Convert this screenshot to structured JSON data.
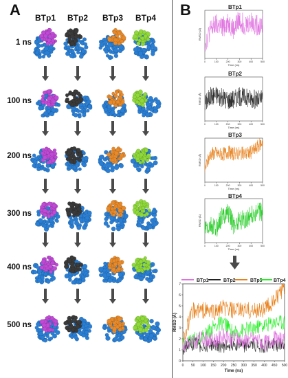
{
  "panel_a": {
    "letter": "A",
    "columns": [
      "BTp1",
      "BTp2",
      "BTp3",
      "BTp4"
    ],
    "times": [
      "1 ns",
      "100 ns",
      "200 ns",
      "300 ns",
      "400 ns",
      "500 ns"
    ],
    "colors": {
      "protein": "#2a7fd4",
      "BTp1": "#c04ad6",
      "BTp2": "#3a3a3a",
      "BTp3": "#e88a2a",
      "BTp4": "#8fd93a"
    }
  },
  "panel_b": {
    "letter": "B",
    "small_plots": [
      {
        "title": "BTp1",
        "ylabel": "RMSD (Å)",
        "xlabel": "Time (ns)",
        "color": "#e070e0"
      },
      {
        "title": "BTp2",
        "ylabel": "RMSD (Å)",
        "xlabel": "Time (ns)",
        "color": "#222222"
      },
      {
        "title": "BTp3",
        "ylabel": "RMSD (Å)",
        "xlabel": "Time (ns)",
        "color": "#e8801a"
      },
      {
        "title": "BTp4",
        "ylabel": "RMSD (Å)",
        "xlabel": "Time (ns)",
        "color": "#22cc22"
      }
    ],
    "combined": {
      "legend": [
        "BTp1",
        "BTp2",
        "BTp3",
        "BTp4"
      ],
      "ylabel": "RMSD (Å)",
      "xlabel": "Time (ns)"
    }
  },
  "chart_data": [
    {
      "type": "line",
      "title": "BTp1",
      "xlabel": "Time (ns)",
      "ylabel": "RMSD (Å)",
      "xlim": [
        0,
        500
      ],
      "ylim": [
        0,
        5
      ],
      "series": [
        {
          "name": "BTp1",
          "color": "#e070e0",
          "x": [
            0,
            50,
            100,
            150,
            200,
            250,
            300,
            350,
            400,
            450,
            500
          ],
          "values": [
            1.5,
            3.0,
            3.5,
            3.2,
            3.8,
            3.0,
            4.0,
            3.5,
            3.8,
            3.4,
            3.6
          ]
        }
      ]
    },
    {
      "type": "line",
      "title": "BTp2",
      "xlabel": "Time (ns)",
      "ylabel": "RMSD (Å)",
      "xlim": [
        0,
        500
      ],
      "ylim": [
        0,
        5
      ],
      "series": [
        {
          "name": "BTp2",
          "color": "#222222",
          "x": [
            0,
            50,
            100,
            150,
            200,
            250,
            300,
            350,
            400,
            450,
            500
          ],
          "values": [
            2.0,
            2.8,
            3.0,
            2.6,
            2.4,
            2.5,
            2.8,
            2.7,
            2.6,
            2.4,
            2.5
          ]
        }
      ]
    },
    {
      "type": "line",
      "title": "BTp3",
      "xlabel": "Time (ns)",
      "ylabel": "RMSD (Å)",
      "xlim": [
        0,
        500
      ],
      "ylim": [
        0,
        7
      ],
      "series": [
        {
          "name": "BTp3",
          "color": "#e8801a",
          "x": [
            0,
            50,
            100,
            150,
            200,
            250,
            300,
            350,
            400,
            450,
            500
          ],
          "values": [
            2.0,
            4.5,
            4.6,
            4.4,
            4.8,
            4.5,
            4.6,
            4.5,
            4.7,
            5.5,
            6.5
          ]
        }
      ]
    },
    {
      "type": "line",
      "title": "BTp4",
      "xlabel": "Time (ns)",
      "ylabel": "RMSD (Å)",
      "xlim": [
        0,
        500
      ],
      "ylim": [
        0,
        5
      ],
      "series": [
        {
          "name": "BTp4",
          "color": "#22cc22",
          "x": [
            0,
            50,
            100,
            150,
            200,
            250,
            300,
            350,
            400,
            450,
            500
          ],
          "values": [
            1.5,
            1.8,
            1.6,
            3.0,
            3.5,
            2.0,
            2.5,
            2.6,
            3.2,
            3.4,
            3.5
          ]
        }
      ]
    },
    {
      "type": "line",
      "xlabel": "Time (ns)",
      "ylabel": "RMSD (Å)",
      "xlim": [
        0,
        500
      ],
      "ylim": [
        0,
        7
      ],
      "x": [
        0,
        50,
        100,
        150,
        200,
        250,
        300,
        350,
        400,
        450,
        500
      ],
      "series": [
        {
          "name": "BTp1",
          "color": "#e070e0",
          "values": [
            1.5,
            1.8,
            2.0,
            1.8,
            2.2,
            2.0,
            1.8,
            2.0,
            1.6,
            2.0,
            1.8
          ]
        },
        {
          "name": "BTp2",
          "color": "#222222",
          "values": [
            1.2,
            1.5,
            1.4,
            1.5,
            1.3,
            1.6,
            1.4,
            1.5,
            1.3,
            1.5,
            1.4
          ]
        },
        {
          "name": "BTp3",
          "color": "#e8801a",
          "values": [
            2.0,
            4.5,
            4.6,
            4.4,
            4.8,
            4.5,
            4.6,
            4.5,
            4.7,
            5.5,
            6.5
          ]
        },
        {
          "name": "BTp4",
          "color": "#22ee22",
          "values": [
            1.5,
            2.0,
            2.2,
            3.0,
            3.5,
            2.5,
            2.8,
            3.0,
            3.2,
            3.5,
            3.5
          ]
        }
      ]
    }
  ]
}
